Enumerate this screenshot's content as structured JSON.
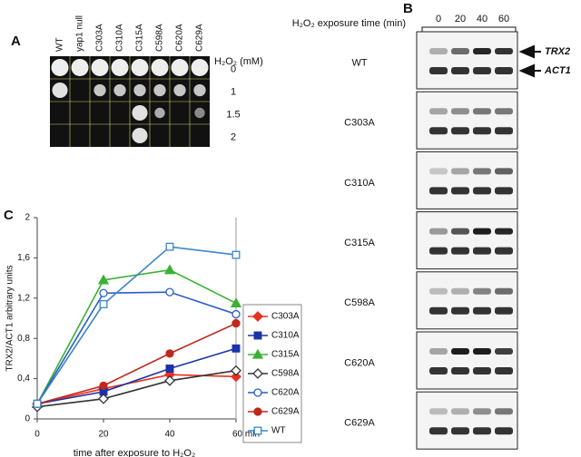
{
  "panel_a": {
    "label": "A",
    "columns": [
      "WT",
      "yap1 null",
      "C303A",
      "C310A",
      "C315A",
      "C598A",
      "C620A",
      "C629A"
    ],
    "dose_header": "H₂O₂ (mM)",
    "doses": [
      "0",
      "1",
      "1.5",
      "2"
    ]
  },
  "panel_b": {
    "label": "B",
    "time_header": "H₂O₂ exposure time (min)",
    "times": [
      "0",
      "20",
      "40",
      "60"
    ],
    "strains": [
      "WT",
      "C303A",
      "C310A",
      "C315A",
      "C598A",
      "C620A",
      "C629A"
    ],
    "bands": [
      "TRX2",
      "ACT1"
    ]
  },
  "chart_data": {
    "type": "line",
    "panel_label": "C",
    "x_label": "time after exposure to H₂O₂",
    "y_label": "TRX2/ACT1 arbitrary units",
    "x": [
      0,
      20,
      40,
      60
    ],
    "xlim": [
      0,
      60
    ],
    "xticks": [
      0,
      20,
      40,
      {
        "value": 60,
        "label": "60 min"
      }
    ],
    "ylim": [
      0,
      2
    ],
    "yticks": [
      0,
      {
        "value": 0.4,
        "label": "0,4"
      },
      {
        "value": 0.8,
        "label": "0,8"
      },
      {
        "value": 1.2,
        "label": "1,2"
      },
      {
        "value": 1.6,
        "label": "1,6"
      },
      2
    ],
    "series": [
      {
        "name": "C303A",
        "color": "#e8311f",
        "marker": "diamond",
        "filled": true,
        "values": [
          0.15,
          0.3,
          0.44,
          0.42
        ]
      },
      {
        "name": "C310A",
        "color": "#1a33a8",
        "marker": "square",
        "filled": true,
        "values": [
          0.15,
          0.27,
          0.5,
          0.7
        ]
      },
      {
        "name": "C315A",
        "color": "#3cb034",
        "marker": "triangle",
        "filled": true,
        "values": [
          0.15,
          1.38,
          1.48,
          1.15
        ]
      },
      {
        "name": "C598A",
        "color": "#333333",
        "marker": "diamond",
        "filled": false,
        "values": [
          0.12,
          0.2,
          0.38,
          0.48
        ]
      },
      {
        "name": "C620A",
        "color": "#2a5cc8",
        "marker": "circle",
        "filled": false,
        "values": [
          0.15,
          1.25,
          1.26,
          1.04
        ]
      },
      {
        "name": "C629A",
        "color": "#c0281c",
        "marker": "circle",
        "filled": true,
        "values": [
          0.15,
          0.33,
          0.65,
          0.95
        ]
      },
      {
        "name": "WT",
        "color": "#3a86c8",
        "marker": "square",
        "filled": false,
        "values": [
          0.15,
          1.14,
          1.71,
          1.63
        ]
      }
    ]
  }
}
